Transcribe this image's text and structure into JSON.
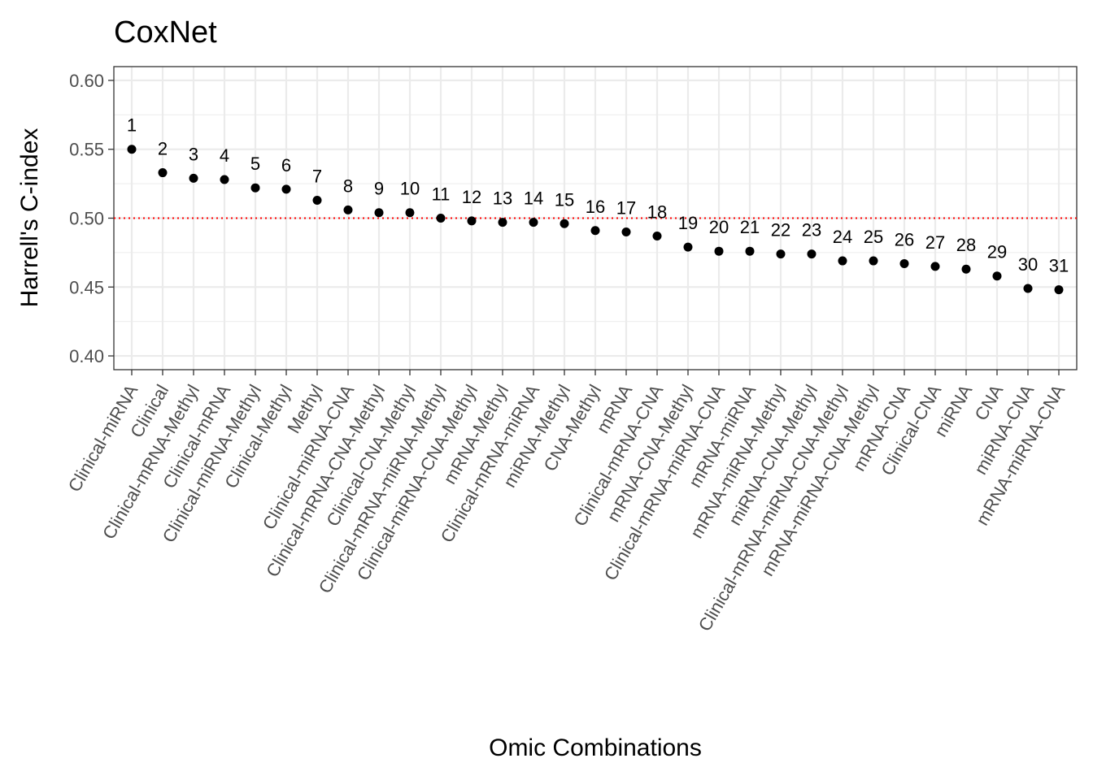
{
  "chart_data": {
    "type": "scatter",
    "title": "CoxNet",
    "xlabel": "Omic Combinations",
    "ylabel": "Harrell's C-index",
    "ylim": [
      0.39,
      0.61
    ],
    "yticks": [
      "0.40",
      "0.45",
      "0.50",
      "0.55",
      "0.60"
    ],
    "reference_line": {
      "y": 0.5,
      "style": "dotted",
      "color": "#ff0000"
    },
    "grid": true,
    "point_color": "#000000",
    "categories": [
      "Clinical-miRNA",
      "Clinical",
      "Clinical-mRNA-Methyl",
      "Clinical-mRNA",
      "Clinical-miRNA-Methyl",
      "Clinical-Methyl",
      "Methyl",
      "Clinical-miRNA-CNA",
      "Clinical-mRNA-CNA-Methyl",
      "Clinical-CNA-Methyl",
      "Clinical-mRNA-miRNA-Methyl",
      "Clinical-miRNA-CNA-Methyl",
      "mRNA-Methyl",
      "Clinical-mRNA-miRNA",
      "miRNA-Methyl",
      "CNA-Methyl",
      "mRNA",
      "Clinical-mRNA-CNA",
      "mRNA-CNA-Methyl",
      "Clinical-mRNA-miRNA-CNA",
      "mRNA-miRNA",
      "mRNA-miRNA-Methyl",
      "miRNA-CNA-Methyl",
      "Clinical-mRNA-miRNA-CNA-Methyl",
      "mRNA-miRNA-CNA-Methyl",
      "mRNA-CNA",
      "Clinical-CNA",
      "miRNA",
      "CNA",
      "miRNA-CNA",
      "mRNA-miRNA-CNA"
    ],
    "values": [
      0.55,
      0.533,
      0.529,
      0.528,
      0.522,
      0.521,
      0.513,
      0.506,
      0.504,
      0.504,
      0.5,
      0.498,
      0.497,
      0.497,
      0.496,
      0.491,
      0.49,
      0.487,
      0.479,
      0.476,
      0.476,
      0.474,
      0.474,
      0.469,
      0.469,
      0.467,
      0.465,
      0.463,
      0.458,
      0.449,
      0.448
    ],
    "labels": [
      "1",
      "2",
      "3",
      "4",
      "5",
      "6",
      "7",
      "8",
      "9",
      "10",
      "11",
      "12",
      "13",
      "14",
      "15",
      "16",
      "17",
      "18",
      "19",
      "20",
      "21",
      "22",
      "23",
      "24",
      "25",
      "26",
      "27",
      "28",
      "29",
      "30",
      "31"
    ]
  }
}
